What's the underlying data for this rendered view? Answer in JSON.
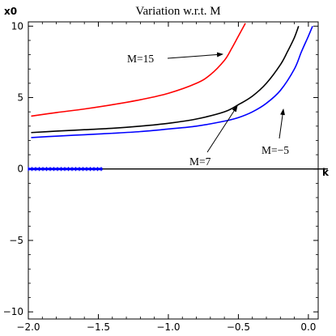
{
  "chart_data": {
    "type": "line",
    "title": "Variation w.r.t. M",
    "xlabel": "k",
    "ylabel": "x0",
    "xlim": [
      -2.0,
      0.07
    ],
    "ylim": [
      -10.5,
      10.3
    ],
    "xticks": [
      {
        "value": -2.0,
        "label": "−2.0"
      },
      {
        "value": -1.5,
        "label": "−1.5"
      },
      {
        "value": -1.0,
        "label": "−1.0"
      },
      {
        "value": -0.5,
        "label": "−0.5"
      },
      {
        "value": 0.0,
        "label": "0.0"
      }
    ],
    "yticks": [
      {
        "value": -10,
        "label": "−10"
      },
      {
        "value": -5,
        "label": "−5"
      },
      {
        "value": 0,
        "label": "0"
      },
      {
        "value": 5,
        "label": "5"
      },
      {
        "value": 10,
        "label": "10"
      }
    ],
    "series": [
      {
        "name": "M=15",
        "color": "#ff0000",
        "x": [
          -1.98,
          -1.8,
          -1.6,
          -1.4,
          -1.2,
          -1.0,
          -0.8,
          -0.7,
          -0.6,
          -0.55,
          -0.5,
          -0.45
        ],
        "y": [
          3.7,
          3.95,
          4.2,
          4.5,
          4.85,
          5.3,
          6.0,
          6.6,
          7.6,
          8.4,
          9.3,
          10.2
        ]
      },
      {
        "name": "M=7",
        "color": "#000000",
        "x": [
          -1.98,
          -1.8,
          -1.6,
          -1.4,
          -1.2,
          -1.0,
          -0.8,
          -0.6,
          -0.5,
          -0.4,
          -0.3,
          -0.2,
          -0.15,
          -0.1,
          -0.07
        ],
        "y": [
          2.55,
          2.65,
          2.75,
          2.85,
          3.0,
          3.2,
          3.5,
          4.0,
          4.5,
          5.1,
          6.0,
          7.3,
          8.2,
          9.2,
          10.0
        ]
      },
      {
        "name": "M=−5",
        "color": "#0000ff",
        "x": [
          -1.98,
          -1.8,
          -1.6,
          -1.4,
          -1.2,
          -1.0,
          -0.8,
          -0.6,
          -0.5,
          -0.4,
          -0.3,
          -0.2,
          -0.1,
          -0.05,
          0.0,
          0.03
        ],
        "y": [
          2.2,
          2.3,
          2.4,
          2.5,
          2.62,
          2.8,
          3.0,
          3.35,
          3.6,
          4.0,
          4.6,
          5.5,
          7.0,
          8.2,
          9.3,
          10.0
        ]
      }
    ],
    "markers": {
      "color": "#0000ff",
      "x": [
        -2.0,
        -1.47
      ],
      "y": 0
    },
    "annotations": [
      {
        "text": "M=15",
        "series": "M=15"
      },
      {
        "text": "M=7",
        "series": "M=7"
      },
      {
        "text": "M=−5",
        "series": "M=−5"
      }
    ],
    "grid": false
  }
}
